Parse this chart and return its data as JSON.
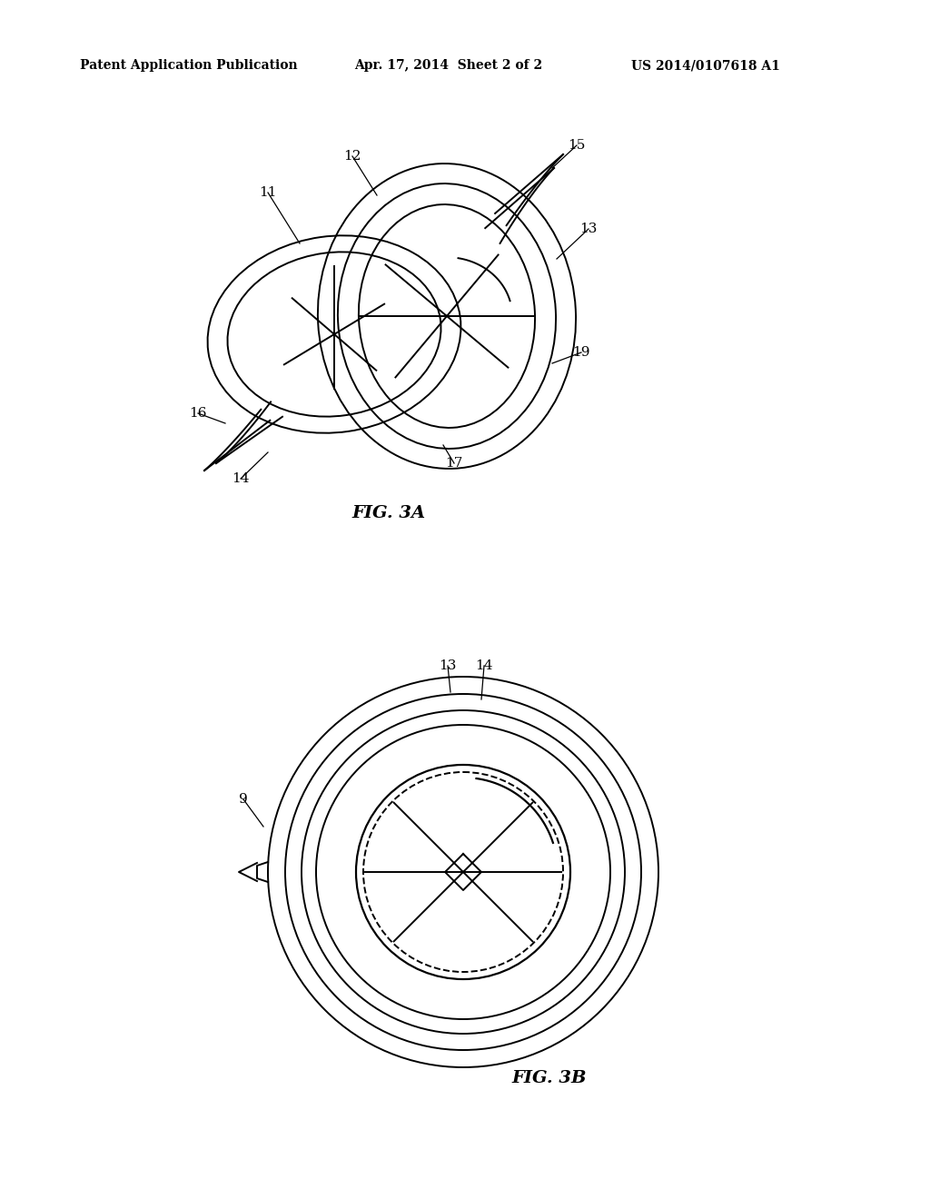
{
  "bg_color": "#ffffff",
  "line_color": "#000000",
  "header_left": "Patent Application Publication",
  "header_center": "Apr. 17, 2014  Sheet 2 of 2",
  "header_right": "US 2014/0107618 A1",
  "fig3a_label": "FIG. 3A",
  "fig3b_label": "FIG. 3B"
}
